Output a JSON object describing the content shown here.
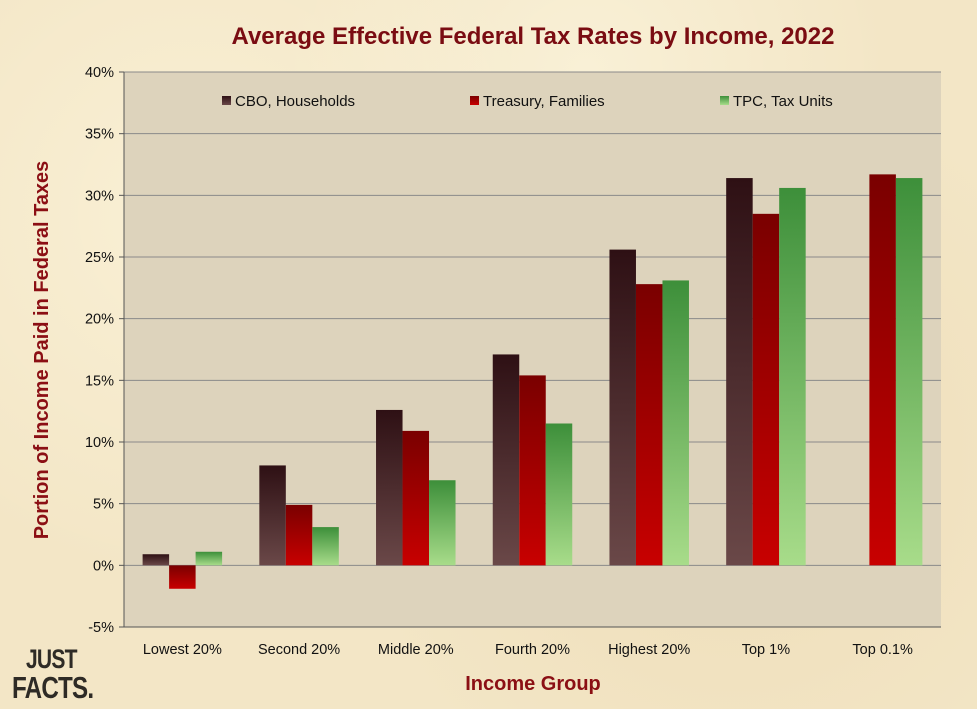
{
  "chart_data": {
    "type": "bar",
    "title": "Average Effective Federal Tax Rates by Income, 2022",
    "xlabel": "Income Group",
    "ylabel": "Portion of Income Paid in Federal Taxes",
    "categories": [
      "Lowest 20%",
      "Second 20%",
      "Middle 20%",
      "Fourth 20%",
      "Highest 20%",
      "Top 1%",
      "Top 0.1%"
    ],
    "series": [
      {
        "name": "CBO, Households",
        "values": [
          0.9,
          8.1,
          12.6,
          17.1,
          25.6,
          31.4,
          null
        ]
      },
      {
        "name": "Treasury, Families",
        "values": [
          -1.9,
          4.9,
          10.9,
          15.4,
          22.8,
          28.5,
          31.7
        ]
      },
      {
        "name": "TPC, Tax Units",
        "values": [
          1.1,
          3.1,
          6.9,
          11.5,
          23.1,
          30.6,
          31.4
        ]
      }
    ],
    "ylim": [
      -5,
      40
    ],
    "yticks": [
      -5,
      0,
      5,
      10,
      15,
      20,
      25,
      30,
      35,
      40
    ],
    "ytick_labels": [
      "-5%",
      "0%",
      "5%",
      "10%",
      "15%",
      "20%",
      "25%",
      "30%",
      "35%",
      "40%"
    ],
    "grid": true,
    "legend_position": "top",
    "colors": {
      "CBO, Households": {
        "top": "#2e1014",
        "bottom": "#6a4848"
      },
      "Treasury, Families": {
        "top": "#7a0000",
        "bottom": "#c80000"
      },
      "TPC, Tax Units": {
        "top": "#3d8f3a",
        "bottom": "#a8dc8a"
      },
      "plot_background": "#ddd3bc",
      "title": "#7a0c12"
    }
  },
  "logo": {
    "line1": "JUST",
    "line2": "FACTS."
  }
}
